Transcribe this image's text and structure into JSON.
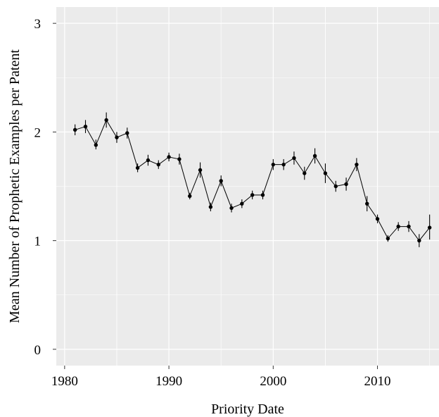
{
  "chart_data": {
    "type": "line",
    "title": "",
    "xlabel": "Priority Date",
    "ylabel": "Mean Number of Prophetic  Examples per Patent",
    "xlim": [
      1979.2,
      2015.9
    ],
    "ylim": [
      -0.15,
      3.15
    ],
    "xticks": [
      1980,
      1990,
      2000,
      2010
    ],
    "yticks": [
      0,
      1,
      2,
      3
    ],
    "grid": true,
    "legend": "none",
    "colors": {
      "panel": "#ebebeb",
      "grid": "#ffffff",
      "line": "#000000",
      "point": "#000000"
    },
    "series": [
      {
        "x": [
          1981,
          1982,
          1983,
          1984,
          1985,
          1986,
          1987,
          1988,
          1989,
          1990,
          1991,
          1992,
          1993,
          1994,
          1995,
          1996,
          1997,
          1998,
          1999,
          2000,
          2001,
          2002,
          2003,
          2004,
          2005,
          2006,
          2007,
          2008,
          2009,
          2010,
          2011,
          2012,
          2013,
          2014,
          2015
        ],
        "y": [
          2.02,
          2.05,
          1.88,
          2.11,
          1.95,
          1.99,
          1.67,
          1.74,
          1.7,
          1.77,
          1.75,
          1.41,
          1.65,
          1.31,
          1.55,
          1.3,
          1.34,
          1.42,
          1.42,
          1.7,
          1.7,
          1.76,
          1.62,
          1.78,
          1.62,
          1.5,
          1.52,
          1.7,
          1.34,
          1.2,
          1.02,
          1.13,
          1.13,
          1.0,
          1.12
        ],
        "lower": [
          1.97,
          1.99,
          1.84,
          2.04,
          1.9,
          1.94,
          1.63,
          1.69,
          1.66,
          1.73,
          1.7,
          1.38,
          1.58,
          1.27,
          1.5,
          1.26,
          1.3,
          1.38,
          1.38,
          1.65,
          1.65,
          1.7,
          1.56,
          1.71,
          1.53,
          1.45,
          1.46,
          1.64,
          1.27,
          1.16,
          0.99,
          1.09,
          1.08,
          0.94,
          1.01
        ],
        "upper": [
          2.07,
          2.11,
          1.93,
          2.18,
          2.0,
          2.04,
          1.71,
          1.79,
          1.74,
          1.81,
          1.8,
          1.44,
          1.72,
          1.35,
          1.6,
          1.34,
          1.38,
          1.46,
          1.46,
          1.75,
          1.75,
          1.82,
          1.68,
          1.85,
          1.71,
          1.55,
          1.58,
          1.76,
          1.41,
          1.24,
          1.05,
          1.17,
          1.18,
          1.06,
          1.24
        ]
      }
    ]
  }
}
